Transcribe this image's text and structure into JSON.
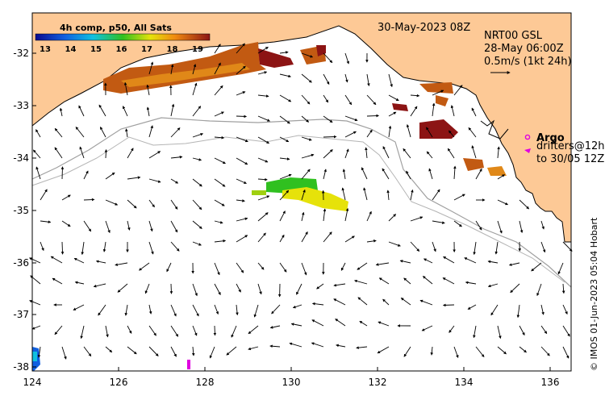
{
  "date_label": "30-May-2023 08Z",
  "product": {
    "line1": "NRT00 GSL",
    "line2": "28-May 06:00Z",
    "line3": "0.5m/s (1kt 24h)"
  },
  "colorbar": {
    "title": "4h comp, p50, All Sats",
    "ticks": [
      "13",
      "14",
      "15",
      "16",
      "17",
      "18",
      "19"
    ]
  },
  "legend": {
    "argo": "Argo",
    "drifters_line1": "drifters@12h",
    "drifters_line2": "to 30/05 12Z",
    "argo_color": "#e000e0",
    "drifter_color": "#e000e0"
  },
  "credit": "© IMOS 01-Jun-2023 05:04 Hobart",
  "x_ticks": [
    "124",
    "126",
    "128",
    "130",
    "132",
    "134",
    "136"
  ],
  "y_ticks": [
    "-32",
    "-33",
    "-34",
    "-35",
    "-36",
    "-37",
    "-38"
  ],
  "colors": {
    "land": "#fdc996",
    "sst_warm": "#c25a12",
    "sst_hot": "#8c1414",
    "sst_yellow": "#e6e20a",
    "sst_green": "#30c020",
    "sst_blue": "#1060e0"
  }
}
